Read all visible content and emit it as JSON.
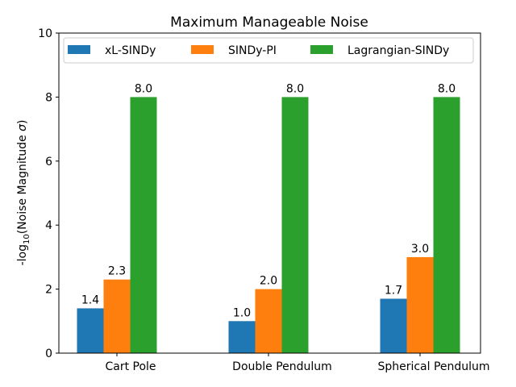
{
  "chart_data": {
    "type": "bar",
    "title": "Maximum Manageable Noise",
    "xlabel": "",
    "ylabel": "-log10(Noise Magnitude σ)",
    "ylim": [
      0,
      10
    ],
    "yticks": [
      0,
      2,
      4,
      6,
      8,
      10
    ],
    "categories": [
      "Cart Pole",
      "Double Pendulum",
      "Spherical Pendulum"
    ],
    "series": [
      {
        "name": "xL-SINDy",
        "color": "#1f77b4",
        "values": [
          1.4,
          1.0,
          1.7
        ],
        "labels": [
          "1.4",
          "1.0",
          "1.7"
        ]
      },
      {
        "name": "SINDy-PI",
        "color": "#ff7f0e",
        "values": [
          2.3,
          2.0,
          3.0
        ],
        "labels": [
          "2.3",
          "2.0",
          "3.0"
        ]
      },
      {
        "name": "Lagrangian-SINDy",
        "color": "#2ca02c",
        "values": [
          8.0,
          8.0,
          8.0
        ],
        "labels": [
          "8.0",
          "8.0",
          "8.0"
        ]
      }
    ],
    "legend": "top",
    "grid": false
  }
}
